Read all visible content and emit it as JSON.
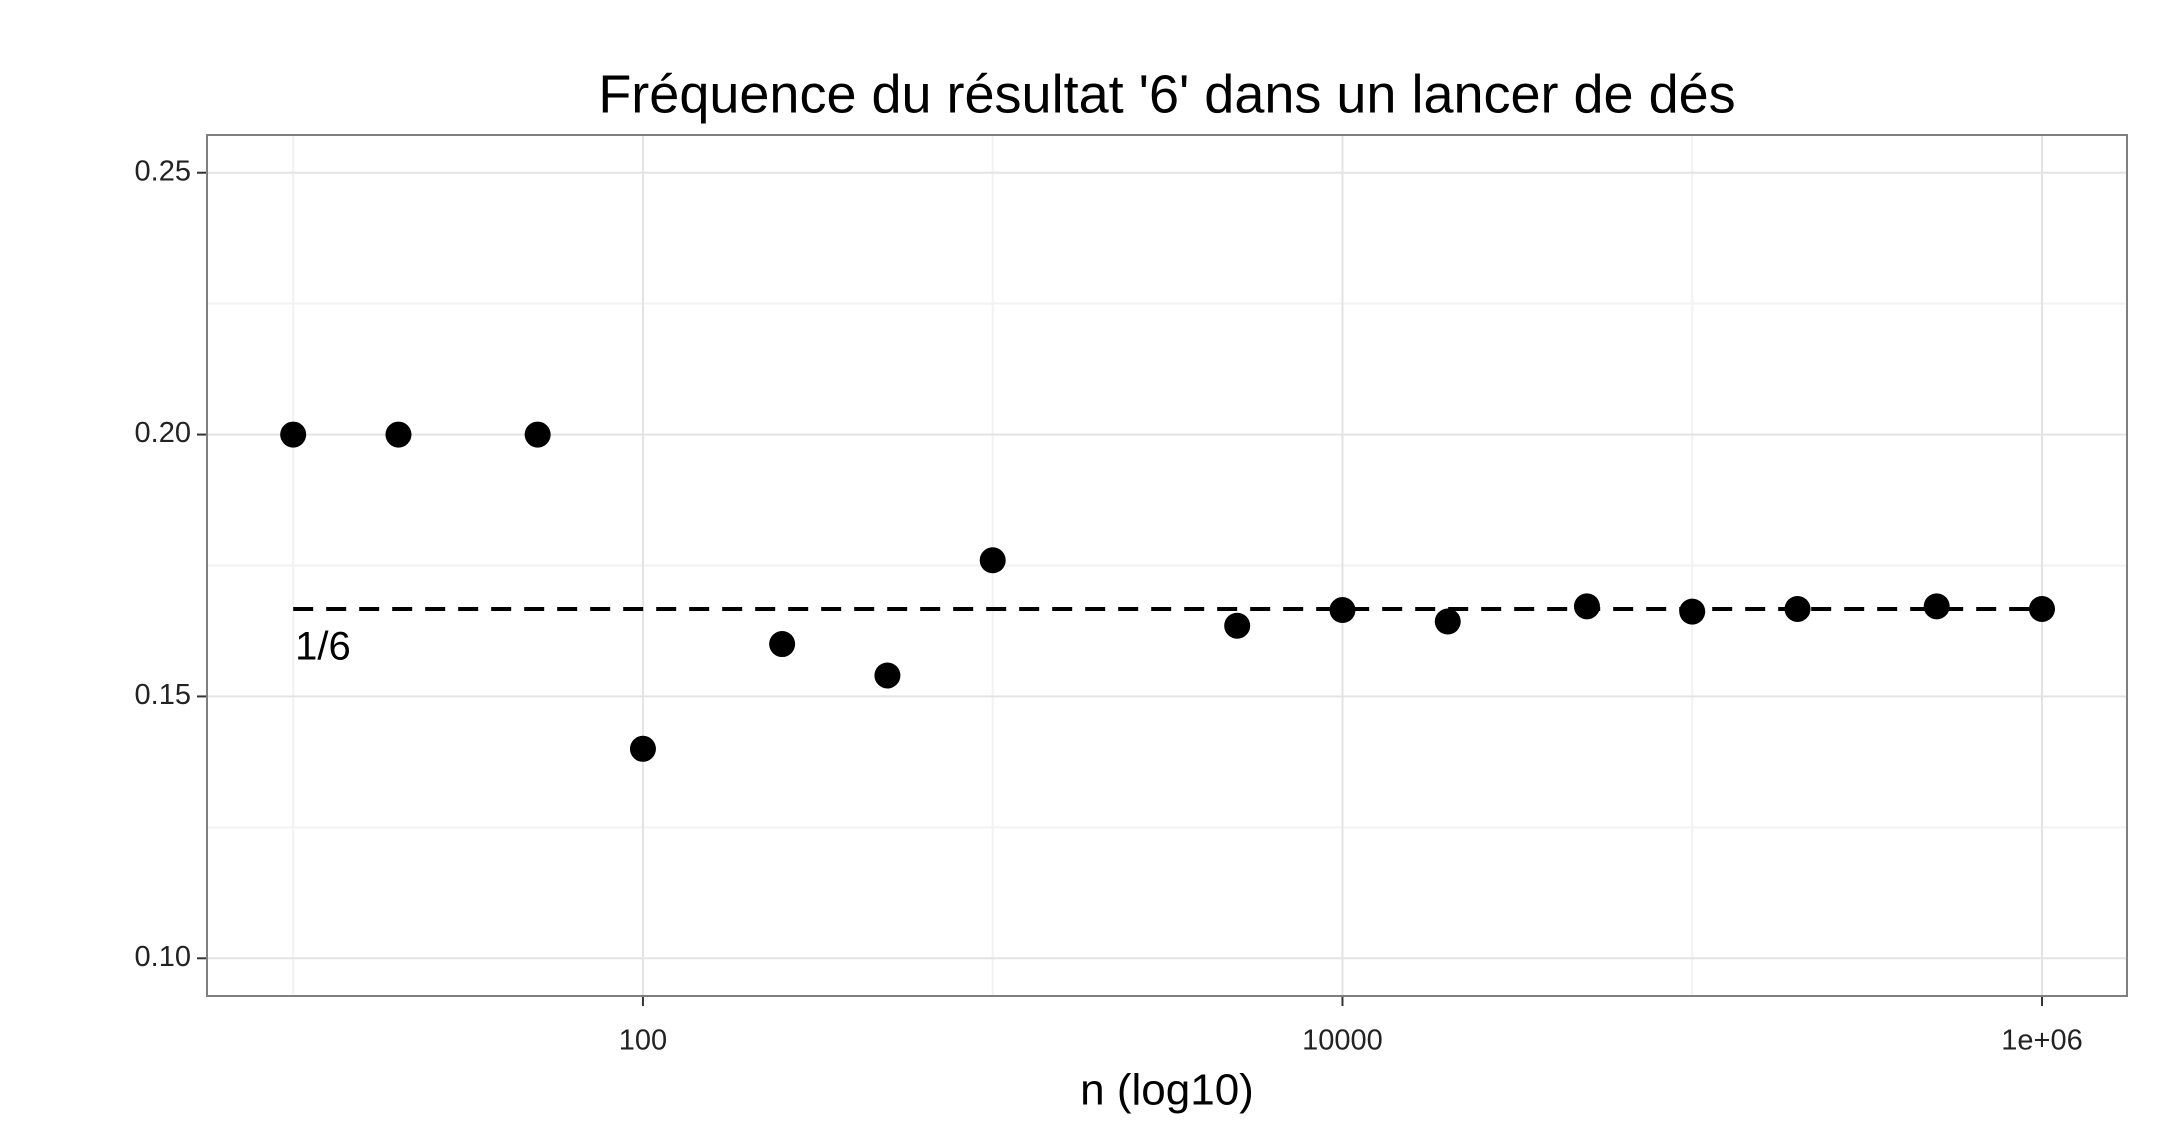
{
  "chart_data": {
    "type": "scatter",
    "title": "Fréquence du résultat '6' dans un lancer de dés",
    "x_label": "n (log10)",
    "x": [
      10,
      20,
      50,
      100,
      250,
      500,
      1000,
      5000,
      10000,
      20000,
      50000,
      100000,
      200000,
      500000,
      1000000
    ],
    "values": [
      0.2,
      0.2,
      0.2,
      0.14,
      0.16,
      0.154,
      0.176,
      0.1635,
      0.1665,
      0.1643,
      0.1672,
      0.1662,
      0.1667,
      0.1672,
      0.1667
    ],
    "color": "#000000",
    "x_log": true,
    "xlim": [
      5.67,
      1750000
    ],
    "ylim": [
      0.0928,
      0.2572
    ],
    "xticks": [
      100,
      10000,
      {
        "value": 1000000,
        "label": "1e+06"
      }
    ],
    "yticks": [
      {
        "value": 0.1,
        "label": "0.10"
      },
      {
        "value": 0.15,
        "label": "0.15"
      },
      {
        "value": 0.2,
        "label": "0.20"
      },
      {
        "value": 0.25,
        "label": "0.25"
      }
    ],
    "grid": true,
    "reference_line": {
      "value": 0.1667,
      "label": "1/6",
      "color": "#000000"
    }
  }
}
